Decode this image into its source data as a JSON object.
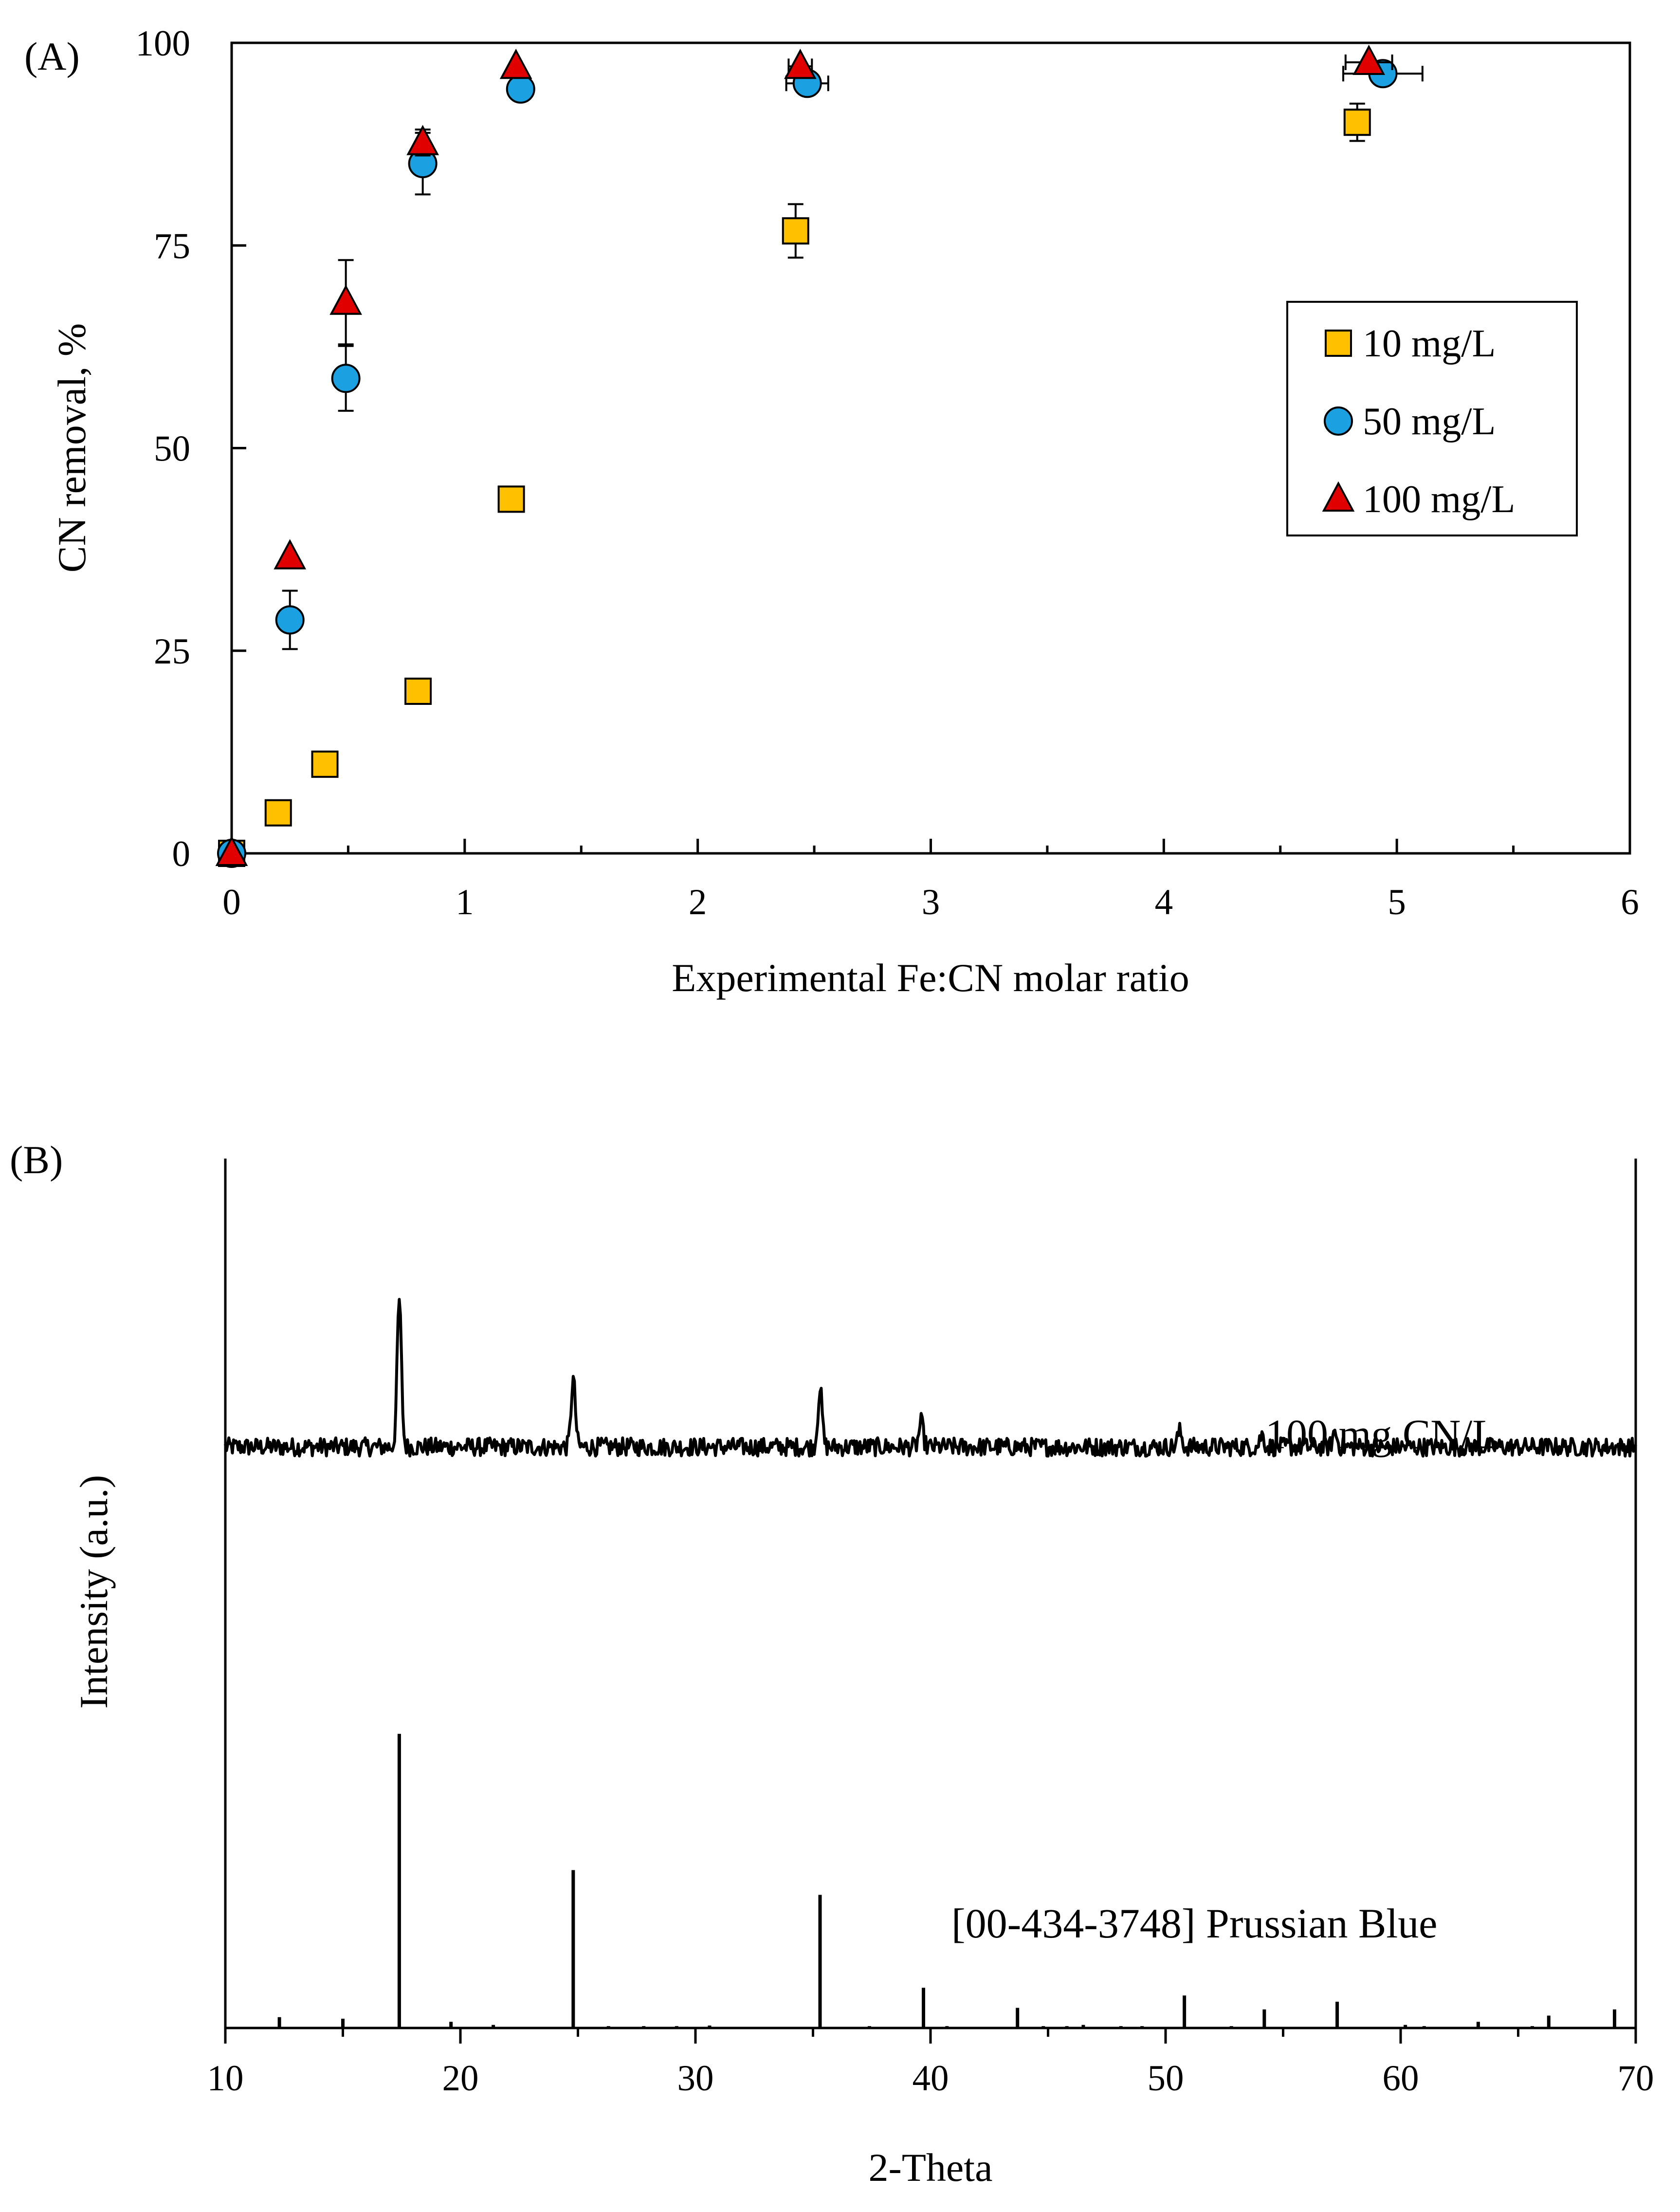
{
  "chart_data": [
    {
      "type": "scatter",
      "panel_label": "(A)",
      "title": "",
      "xlabel": "Experimental Fe:CN molar ratio",
      "ylabel": "CN removal, %",
      "xlim": [
        0,
        6
      ],
      "ylim": [
        0,
        100
      ],
      "xticks": [
        0,
        1,
        2,
        3,
        4,
        5,
        6
      ],
      "yticks": [
        0,
        25,
        50,
        75,
        100
      ],
      "grid": false,
      "legend_position": "right",
      "series": [
        {
          "name": "10 mg/L",
          "marker": "square",
          "color": "#FFC000",
          "points": [
            {
              "x": 0,
              "y": 0,
              "yerr": 0,
              "xerr": 0
            },
            {
              "x": 0.2,
              "y": 5,
              "yerr": 0,
              "xerr": 0
            },
            {
              "x": 0.4,
              "y": 11,
              "yerr": 0,
              "xerr": 0
            },
            {
              "x": 0.8,
              "y": 20,
              "yerr": 0,
              "xerr": 0
            },
            {
              "x": 1.2,
              "y": 43.7,
              "yerr": 0,
              "xerr": 0
            },
            {
              "x": 2.42,
              "y": 76.8,
              "yerr": 3.3,
              "xerr": 0
            },
            {
              "x": 4.83,
              "y": 90.2,
              "yerr": 2.3,
              "xerr": 0
            }
          ]
        },
        {
          "name": "50 mg/L",
          "marker": "circle",
          "color": "#1BA1E2",
          "points": [
            {
              "x": 0,
              "y": 0,
              "yerr": 0,
              "xerr": 0
            },
            {
              "x": 0.25,
              "y": 28.8,
              "yerr": 3.6,
              "xerr": 0
            },
            {
              "x": 0.49,
              "y": 58.6,
              "yerr": 4,
              "xerr": 0
            },
            {
              "x": 0.82,
              "y": 85.1,
              "yerr": 3.8,
              "xerr": 0
            },
            {
              "x": 1.24,
              "y": 94.3,
              "yerr": 0,
              "xerr": 0
            },
            {
              "x": 2.47,
              "y": 95,
              "yerr": 0,
              "xerr": 0.09
            },
            {
              "x": 4.94,
              "y": 96.2,
              "yerr": 0,
              "xerr": 0.17
            }
          ]
        },
        {
          "name": "100 mg/L",
          "marker": "triangle",
          "color": "#E00000",
          "points": [
            {
              "x": 0,
              "y": 0,
              "yerr": 0,
              "xerr": 0
            },
            {
              "x": 0.25,
              "y": 36.6,
              "yerr": 0,
              "xerr": 0
            },
            {
              "x": 0.49,
              "y": 68,
              "yerr": 5.2,
              "xerr": 0
            },
            {
              "x": 0.82,
              "y": 87.7,
              "yerr": 1.6,
              "xerr": 0
            },
            {
              "x": 1.22,
              "y": 97.1,
              "yerr": 0,
              "xerr": 0
            },
            {
              "x": 2.44,
              "y": 97.1,
              "yerr": 0,
              "xerr": 0.05
            },
            {
              "x": 4.88,
              "y": 97.6,
              "yerr": 0,
              "xerr": 0.1
            }
          ]
        }
      ]
    },
    {
      "type": "line",
      "panel_label": "(B)",
      "title": "",
      "xlabel": "2-Theta",
      "ylabel": "Intensity (a.u.)",
      "xlim": [
        10,
        70
      ],
      "xticks": [
        10,
        20,
        30,
        40,
        50,
        60,
        70
      ],
      "grid": false,
      "measured": {
        "name": "100 mg CN/L",
        "baseline_level": 0.52,
        "noise_amplitude": 0.03,
        "peaks": [
          {
            "two_theta": 17.4,
            "intensity": 1.0
          },
          {
            "two_theta": 24.8,
            "intensity": 0.74
          },
          {
            "two_theta": 35.3,
            "intensity": 0.71
          },
          {
            "two_theta": 39.6,
            "intensity": 0.6
          },
          {
            "two_theta": 50.6,
            "intensity": 0.57
          },
          {
            "two_theta": 54.1,
            "intensity": 0.56
          },
          {
            "two_theta": 57.2,
            "intensity": 0.57
          }
        ]
      },
      "reference": {
        "name": "[00-434-3748] Prussian Blue",
        "sticks": [
          {
            "two_theta": 12.3,
            "intensity": 0.035
          },
          {
            "two_theta": 15.0,
            "intensity": 0.03
          },
          {
            "two_theta": 17.4,
            "intensity": 0.95
          },
          {
            "two_theta": 19.6,
            "intensity": 0.02
          },
          {
            "two_theta": 21.4,
            "intensity": 0.01
          },
          {
            "two_theta": 24.8,
            "intensity": 0.51
          },
          {
            "two_theta": 26.3,
            "intensity": 0.006
          },
          {
            "two_theta": 27.8,
            "intensity": 0.006
          },
          {
            "two_theta": 29.2,
            "intensity": 0.006
          },
          {
            "two_theta": 30.6,
            "intensity": 0.008
          },
          {
            "two_theta": 35.3,
            "intensity": 0.43
          },
          {
            "two_theta": 37.4,
            "intensity": 0.006
          },
          {
            "two_theta": 39.7,
            "intensity": 0.13
          },
          {
            "two_theta": 40.7,
            "intensity": 0.006
          },
          {
            "two_theta": 43.7,
            "intensity": 0.065
          },
          {
            "two_theta": 44.8,
            "intensity": 0.006
          },
          {
            "two_theta": 45.8,
            "intensity": 0.006
          },
          {
            "two_theta": 46.5,
            "intensity": 0.01
          },
          {
            "two_theta": 48.1,
            "intensity": 0.006
          },
          {
            "two_theta": 49.0,
            "intensity": 0.006
          },
          {
            "two_theta": 50.8,
            "intensity": 0.105
          },
          {
            "two_theta": 52.8,
            "intensity": 0.006
          },
          {
            "two_theta": 54.2,
            "intensity": 0.06
          },
          {
            "two_theta": 57.3,
            "intensity": 0.085
          },
          {
            "two_theta": 60.2,
            "intensity": 0.01
          },
          {
            "two_theta": 61.0,
            "intensity": 0.006
          },
          {
            "two_theta": 63.3,
            "intensity": 0.02
          },
          {
            "two_theta": 65.6,
            "intensity": 0.006
          },
          {
            "two_theta": 66.3,
            "intensity": 0.04
          },
          {
            "two_theta": 69.1,
            "intensity": 0.06
          }
        ]
      }
    }
  ]
}
